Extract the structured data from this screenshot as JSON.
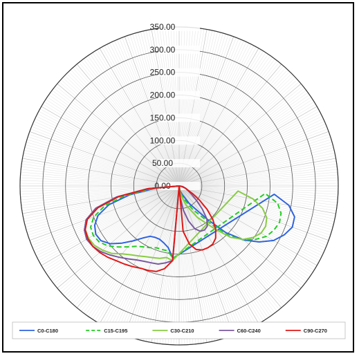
{
  "chart_data": {
    "type": "polar-line",
    "title": "",
    "radial_ticks": [
      "0.00",
      "50.00",
      "100.00",
      "150.00",
      "200.00",
      "250.00",
      "300.00",
      "350.00"
    ],
    "r_max": 350,
    "grid": true,
    "legend_position": "bottom",
    "series": [
      {
        "name": "C0-C180",
        "color": "#2e63e0",
        "dash": "solid",
        "points": [
          [
            0,
            0
          ],
          [
            10,
            10
          ],
          [
            20,
            20
          ],
          [
            30,
            45
          ],
          [
            40,
            95
          ],
          [
            45,
            145
          ],
          [
            50,
            185
          ],
          [
            55,
            215
          ],
          [
            60,
            240
          ],
          [
            65,
            255
          ],
          [
            70,
            265
          ],
          [
            75,
            263
          ],
          [
            80,
            245
          ],
          [
            85,
            210
          ],
          [
            -5,
            160
          ],
          [
            -10,
            138
          ],
          [
            -15,
            130
          ],
          [
            -20,
            125
          ],
          [
            -25,
            125
          ],
          [
            -30,
            128
          ],
          [
            -35,
            140
          ],
          [
            -40,
            158
          ],
          [
            -45,
            178
          ],
          [
            -50,
            198
          ],
          [
            -55,
            210
          ],
          [
            -60,
            212
          ],
          [
            -65,
            205
          ],
          [
            -70,
            190
          ],
          [
            -75,
            160
          ],
          [
            -80,
            110
          ],
          [
            -85,
            50
          ],
          [
            -90,
            0
          ]
        ]
      },
      {
        "name": "C15-C195",
        "color": "#22cc22",
        "dash": "dashed",
        "points": [
          [
            0,
            0
          ],
          [
            10,
            15
          ],
          [
            20,
            30
          ],
          [
            30,
            60
          ],
          [
            40,
            110
          ],
          [
            45,
            155
          ],
          [
            50,
            185
          ],
          [
            55,
            205
          ],
          [
            60,
            222
          ],
          [
            65,
            230
          ],
          [
            70,
            235
          ],
          [
            75,
            232
          ],
          [
            80,
            220
          ],
          [
            85,
            190
          ],
          [
            -5,
            160
          ],
          [
            -10,
            145
          ],
          [
            -15,
            145
          ],
          [
            -20,
            145
          ],
          [
            -25,
            150
          ],
          [
            -30,
            155
          ],
          [
            -35,
            162
          ],
          [
            -40,
            175
          ],
          [
            -45,
            190
          ],
          [
            -50,
            205
          ],
          [
            -55,
            215
          ],
          [
            -60,
            218
          ],
          [
            -65,
            215
          ],
          [
            -70,
            200
          ],
          [
            -75,
            170
          ],
          [
            -80,
            120
          ],
          [
            -85,
            55
          ],
          [
            -90,
            0
          ]
        ]
      },
      {
        "name": "C30-C210",
        "color": "#88cc44",
        "dash": "solid",
        "points": [
          [
            0,
            0
          ],
          [
            10,
            20
          ],
          [
            20,
            45
          ],
          [
            30,
            80
          ],
          [
            40,
            125
          ],
          [
            45,
            160
          ],
          [
            50,
            183
          ],
          [
            55,
            198
          ],
          [
            60,
            208
          ],
          [
            65,
            210
          ],
          [
            70,
            205
          ],
          [
            75,
            190
          ],
          [
            80,
            165
          ],
          [
            85,
            130
          ],
          [
            -5,
            165
          ],
          [
            -10,
            160
          ],
          [
            -15,
            165
          ],
          [
            -20,
            168
          ],
          [
            -25,
            172
          ],
          [
            -30,
            178
          ],
          [
            -35,
            185
          ],
          [
            -40,
            195
          ],
          [
            -45,
            210
          ],
          [
            -50,
            220
          ],
          [
            -55,
            228
          ],
          [
            -60,
            230
          ],
          [
            -65,
            228
          ],
          [
            -70,
            215
          ],
          [
            -75,
            185
          ],
          [
            -80,
            135
          ],
          [
            -85,
            65
          ],
          [
            -90,
            0
          ]
        ]
      },
      {
        "name": "C60-C240",
        "color": "#7a5aa0",
        "dash": "solid",
        "points": [
          [
            0,
            0
          ],
          [
            5,
            25
          ],
          [
            10,
            55
          ],
          [
            15,
            80
          ],
          [
            20,
            100
          ],
          [
            25,
            110
          ],
          [
            30,
            112
          ],
          [
            35,
            108
          ],
          [
            40,
            95
          ],
          [
            45,
            72
          ],
          [
            50,
            50
          ],
          [
            55,
            35
          ],
          [
            60,
            25
          ],
          [
            70,
            15
          ],
          [
            80,
            8
          ],
          [
            90,
            0
          ],
          [
            -5,
            165
          ],
          [
            -10,
            172
          ],
          [
            -15,
            178
          ],
          [
            -20,
            180
          ],
          [
            -25,
            183
          ],
          [
            -30,
            188
          ],
          [
            -35,
            196
          ],
          [
            -40,
            205
          ],
          [
            -45,
            215
          ],
          [
            -50,
            225
          ],
          [
            -55,
            232
          ],
          [
            -60,
            235
          ],
          [
            -65,
            230
          ],
          [
            -70,
            218
          ],
          [
            -75,
            190
          ],
          [
            -80,
            140
          ],
          [
            -85,
            70
          ],
          [
            -90,
            0
          ]
        ]
      },
      {
        "name": "C90-C270",
        "color": "#e01818",
        "dash": "solid",
        "points": [
          [
            0,
            0
          ],
          [
            5,
            100
          ],
          [
            10,
            130
          ],
          [
            15,
            145
          ],
          [
            20,
            150
          ],
          [
            25,
            150
          ],
          [
            30,
            148
          ],
          [
            35,
            140
          ],
          [
            40,
            125
          ],
          [
            45,
            105
          ],
          [
            50,
            80
          ],
          [
            55,
            55
          ],
          [
            60,
            35
          ],
          [
            70,
            15
          ],
          [
            80,
            5
          ],
          [
            90,
            0
          ],
          [
            -5,
            165
          ],
          [
            -10,
            185
          ],
          [
            -15,
            195
          ],
          [
            -20,
            198
          ],
          [
            -25,
            200
          ],
          [
            -30,
            205
          ],
          [
            -35,
            210
          ],
          [
            -40,
            215
          ],
          [
            -45,
            222
          ],
          [
            -50,
            228
          ],
          [
            -55,
            232
          ],
          [
            -60,
            232
          ],
          [
            -65,
            228
          ],
          [
            -70,
            215
          ],
          [
            -75,
            185
          ],
          [
            -80,
            135
          ],
          [
            -85,
            68
          ],
          [
            -90,
            0
          ]
        ]
      }
    ]
  }
}
